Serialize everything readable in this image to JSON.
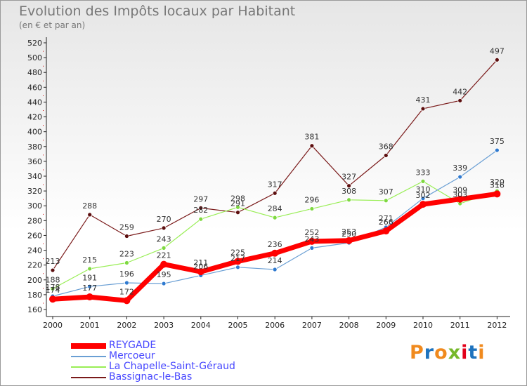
{
  "header": {
    "title": "Evolution des Impôts locaux par Habitant",
    "subtitle": "(en € et par an)"
  },
  "chart_data": {
    "type": "line",
    "title": "Evolution des Impôts locaux par Habitant",
    "subtitle": "(en € et par an)",
    "xlabel": "",
    "ylabel": "",
    "ylim": [
      160,
      520
    ],
    "ytick_step": 20,
    "grid": false,
    "legend_position": "bottom-left",
    "categories": [
      "2000",
      "2001",
      "2002",
      "2003",
      "2004",
      "2005",
      "2006",
      "2007",
      "2008",
      "2009",
      "2010",
      "2011",
      "2012"
    ],
    "series": [
      {
        "name": "REYGADE",
        "color": "#ff0000",
        "values": [
          174,
          177,
          172,
          221,
          211,
          225,
          236,
          252,
          253,
          266,
          302,
          309,
          316
        ]
      },
      {
        "name": "Mercoeur",
        "color": "#6a9fd4",
        "values": [
          178,
          191,
          196,
          195,
          206,
          217,
          214,
          243,
          250,
          271,
          310,
          339,
          375
        ]
      },
      {
        "name": "La Chapelle-Saint-Géraud",
        "color": "#99ee55",
        "values": [
          188,
          215,
          223,
          243,
          282,
          298,
          284,
          296,
          308,
          307,
          333,
          303,
          320
        ]
      },
      {
        "name": "Bassignac-le-Bas",
        "color": "#7a1a1a",
        "values": [
          213,
          288,
          259,
          270,
          297,
          291,
          317,
          381,
          327,
          368,
          431,
          442,
          497
        ]
      }
    ]
  },
  "logo": {
    "text": "Proxiti",
    "letter_colors": [
      "#f08a1e",
      "#1e73be",
      "#f08a1e",
      "#76b82a",
      "#e2001a",
      "#1e73be",
      "#f08a1e"
    ]
  }
}
